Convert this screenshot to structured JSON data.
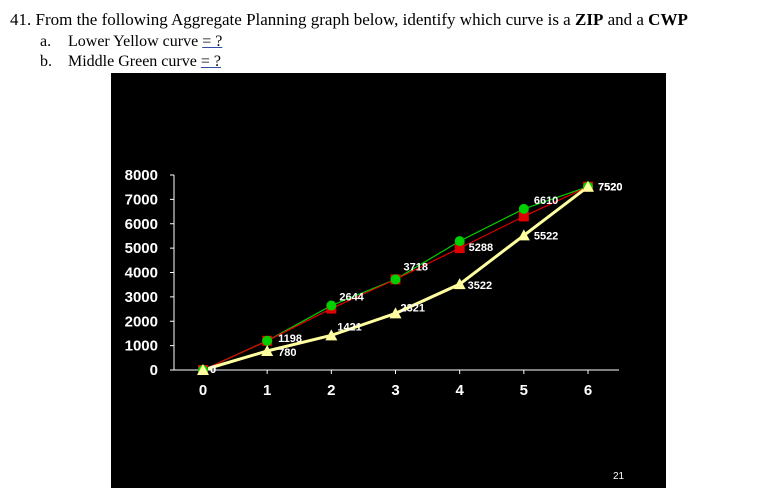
{
  "question": {
    "number": "41.",
    "text_before": "From the following Aggregate Planning graph below, identify which curve is a",
    "term1": "ZIP",
    "and": "and a",
    "term2": "CWP",
    "options": [
      {
        "letter": "a.",
        "text": "Lower Yellow curve",
        "answer": "= ?"
      },
      {
        "letter": "b.",
        "text": "Middle Green curve",
        "answer": "= ?"
      }
    ]
  },
  "slide_number": "21",
  "colors": {
    "background": "#000000",
    "green": "#00d000",
    "red": "#e00000",
    "yellow": "#ffffa0",
    "axis": "#ffffff"
  },
  "chart_data": {
    "type": "line",
    "x": [
      0,
      1,
      2,
      3,
      4,
      5,
      6
    ],
    "xlim": [
      0,
      6
    ],
    "ylim": [
      0,
      8000
    ],
    "yticks": [
      0,
      1000,
      2000,
      3000,
      4000,
      5000,
      6000,
      7000,
      8000
    ],
    "xticks": [
      0,
      1,
      2,
      3,
      4,
      5,
      6
    ],
    "series": [
      {
        "marker": "square",
        "color": "red",
        "values": [
          0,
          1198,
          2520,
          3718,
          5000,
          6300,
          7520
        ]
      },
      {
        "marker": "circle",
        "color": "green",
        "values": [
          0,
          1198,
          2644,
          3718,
          5288,
          6610,
          7520
        ],
        "labels": [
          "0",
          "1198",
          "2644",
          "3718",
          "5288",
          "6610",
          "7520"
        ]
      },
      {
        "marker": "triangle",
        "color": "yellow",
        "values": [
          0,
          780,
          1421,
          2321,
          3522,
          5522,
          7520
        ],
        "labels": [
          "0",
          "780",
          "1421",
          "2321",
          "3522",
          "5522",
          "7520"
        ]
      }
    ]
  }
}
